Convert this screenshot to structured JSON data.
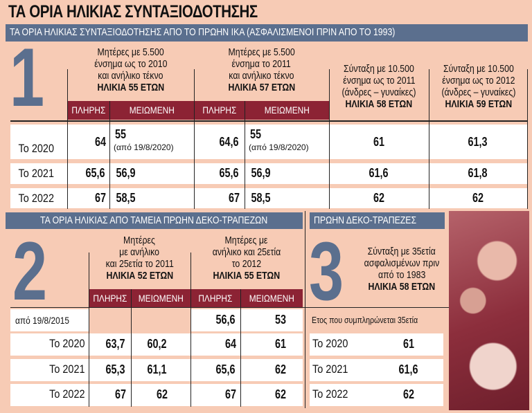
{
  "title": "ΤΑ ΟΡΙΑ ΗΛΙΚΙΑΣ ΣΥΝΤΑΞΙΟΔΟΤΗΣΗΣ",
  "colors": {
    "background": "#f7cbb5",
    "banner": "#5b6f8e",
    "header_bar": "#8c2334",
    "big_number": "#5b6f8e"
  },
  "section1": {
    "banner": "ΤΑ ΟΡΙΑ ΗΛΙΚΙΑΣ ΣΥΝΤΑΞΙΟΔΟΤΗΣΗΣ ΑΠΟ ΤΟ ΠΡΩΗΝ ΙΚΑ (ΑΣΦΑΛΙΣΜΕΝΟΙ ΠΡΙΝ ΑΠΟ ΤΟ 1993)",
    "number": "1",
    "groups": [
      {
        "lines": [
          "Μητέρες με 5.500",
          "ένσημα ως το 2010",
          "και ανήλικο τέκνο"
        ],
        "age": "ΗΛΙΚΙΑ 55 ΕΤΩΝ"
      },
      {
        "lines": [
          "Μητέρες με 5.500",
          "ένσημα το 2011",
          "και ανήλικο τέκνο"
        ],
        "age": "ΗΛΙΚΙΑ 57 ΕΤΩΝ"
      },
      {
        "lines": [
          "Σύνταξη με 10.500",
          "ένσημα ως το 2011",
          "(άνδρες – γυναίκες)"
        ],
        "age": "ΗΛΙΚΙΑ 58 ΕΤΩΝ"
      },
      {
        "lines": [
          "Σύνταξη με 10.500",
          "ένσημα ως το 2012",
          "(άνδρες – γυναίκες)"
        ],
        "age": "ΗΛΙΚΙΑ 59 ΕΤΩΝ"
      }
    ],
    "sub": [
      "ΠΛΗΡΗΣ",
      "ΜΕΙΩΜΕΝΗ",
      "ΠΛΗΡΗΣ",
      "ΜΕΙΩΜΕΝΗ"
    ],
    "rows": [
      {
        "label": "Το 2020",
        "values": [
          "64",
          "55",
          "64,6",
          "55",
          "61",
          "61,3"
        ],
        "note": "(από 19/8/2020)"
      },
      {
        "label": "Το 2021",
        "values": [
          "65,6",
          "56,9",
          "65,6",
          "56,9",
          "61,6",
          "61,8"
        ]
      },
      {
        "label": "Το 2022",
        "values": [
          "67",
          "58,5",
          "67",
          "58,5",
          "62",
          "62"
        ]
      }
    ]
  },
  "section2": {
    "banner": "ΤΑ ΟΡΙΑ ΗΛΙΚΙΑΣ ΑΠΟ ΤΑΜΕΙΑ ΠΡΩΗΝ ΔΕΚΟ-ΤΡΑΠΕΖΩΝ",
    "number": "2",
    "groups": [
      {
        "lines": [
          "Μητέρες",
          "με ανήλικο",
          "και 25ετία το 2011"
        ],
        "age": "ΗΛΙΚΙΑ 52 ΕΤΩΝ"
      },
      {
        "lines": [
          "Μητέρες με",
          "ανήλικο και 25ετία",
          "το 2012"
        ],
        "age": "ΗΛΙΚΙΑ 55 ΕΤΩΝ"
      }
    ],
    "sub": [
      "ΠΛΗΡΗΣ",
      "ΜΕΙΩΜΕΝΗ",
      "ΠΛΗΡΗΣ",
      "ΜΕΙΩΜΕΝΗ"
    ],
    "rows": [
      {
        "label": "από 19/8/2015",
        "values": [
          "",
          "",
          "56,6",
          "53"
        ]
      },
      {
        "label": "Το 2020",
        "values": [
          "63,7",
          "60,2",
          "64",
          "61"
        ]
      },
      {
        "label": "Το 2021",
        "values": [
          "65,3",
          "61,1",
          "65,6",
          "62"
        ]
      },
      {
        "label": "Το 2022",
        "values": [
          "67",
          "62",
          "67",
          "62"
        ]
      }
    ]
  },
  "section3": {
    "banner": "ΠΡΩΗΝ ΔΕΚΟ-ΤΡΑΠΕΖΕΣ",
    "number": "3",
    "lines": [
      "Σύνταξη με 35ετία",
      "ασφαλισμένων πριν",
      "από το 1983"
    ],
    "age": "ΗΛΙΚΙΑ 58 ΕΤΩΝ",
    "caption": "Ετος που συμπληρώνεται 35ετία",
    "rows": [
      {
        "label": "Το 2020",
        "value": "61"
      },
      {
        "label": "Το 2021",
        "value": "61,6"
      },
      {
        "label": "Το 2022",
        "value": "62"
      }
    ]
  }
}
